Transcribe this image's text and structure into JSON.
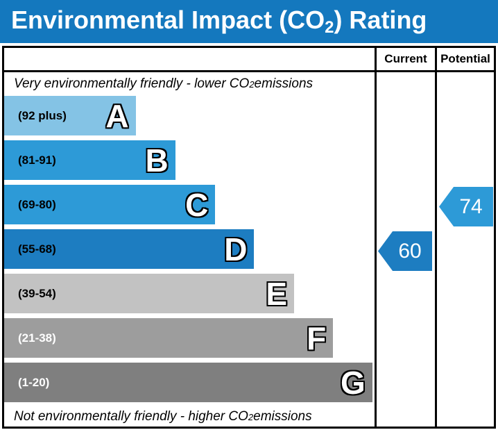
{
  "header": {
    "title_prefix": "Environmental Impact (CO",
    "title_sub": "2",
    "title_suffix": ") Rating",
    "bg_color": "#1478be",
    "text_color": "#ffffff"
  },
  "table": {
    "columns": {
      "current_label": "Current",
      "potential_label": "Potential"
    },
    "top_note": {
      "prefix": "Very environmentally friendly - lower CO",
      "sub": "2",
      "suffix": " emissions"
    },
    "bottom_note": {
      "prefix": "Not environmentally friendly - higher CO",
      "sub": "2",
      "suffix": " emissions"
    },
    "bands": [
      {
        "letter": "A",
        "range": "(92 plus)",
        "color": "#84c3e5",
        "width_pct": 35.5,
        "label_color": "#000000"
      },
      {
        "letter": "B",
        "range": "(81-91)",
        "color": "#2d9ad7",
        "width_pct": 46.2,
        "label_color": "#000000"
      },
      {
        "letter": "C",
        "range": "(69-80)",
        "color": "#2d9ad7",
        "width_pct": 57.0,
        "label_color": "#000000"
      },
      {
        "letter": "D",
        "range": "(55-68)",
        "color": "#1d7dc1",
        "width_pct": 67.5,
        "label_color": "#000000"
      },
      {
        "letter": "E",
        "range": "(39-54)",
        "color": "#c2c2c2",
        "width_pct": 78.3,
        "label_color": "#000000"
      },
      {
        "letter": "F",
        "range": "(21-38)",
        "color": "#9d9d9d",
        "width_pct": 88.8,
        "label_color": "#ffffff"
      },
      {
        "letter": "G",
        "range": "(1-20)",
        "color": "#7f7f7f",
        "width_pct": 99.4,
        "label_color": "#ffffff"
      }
    ],
    "ratings": {
      "current": {
        "value": "60",
        "band": "D",
        "color": "#1d7dc1",
        "band_index": 3
      },
      "potential": {
        "value": "74",
        "band": "C",
        "color": "#2d9ad7",
        "band_index": 2
      }
    }
  },
  "chart_data": {
    "type": "bar",
    "title": "Environmental Impact (CO2) Rating",
    "categories": [
      "A",
      "B",
      "C",
      "D",
      "E",
      "F",
      "G"
    ],
    "band_ranges": [
      "92 plus",
      "81-91",
      "69-80",
      "55-68",
      "39-54",
      "21-38",
      "1-20"
    ],
    "band_colors": [
      "#84c3e5",
      "#2d9ad7",
      "#2d9ad7",
      "#1d7dc1",
      "#c2c2c2",
      "#9d9d9d",
      "#7f7f7f"
    ],
    "values_note": "bar lengths increase linearly from A (shortest) to G (longest)",
    "current_rating": 60,
    "current_band": "D",
    "potential_rating": 74,
    "potential_band": "C",
    "scale": [
      1,
      100
    ],
    "legend_position": "none",
    "top_annotation": "Very environmentally friendly - lower CO2 emissions",
    "bottom_annotation": "Not environmentally friendly - higher CO2 emissions"
  }
}
